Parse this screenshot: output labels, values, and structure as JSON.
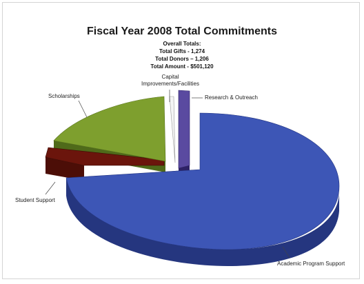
{
  "chart_data": {
    "type": "pie",
    "title": "Fiscal Year 2008 Total Commitments",
    "subtitle_lines": [
      "Overall Totals:",
      "Total Gifts - 1,274",
      "Total Donors – 1,206",
      "Total Amount - $501,120"
    ],
    "categories": [
      "Academic Program Support",
      "Student Support",
      "Scholarships",
      "Capital Improvements/Facilities",
      "Research & Outreach"
    ],
    "values": [
      70,
      5,
      20,
      1,
      4
    ],
    "value_unit": "percent (estimated)",
    "colors": [
      "#3d56b6",
      "#6b150c",
      "#7e9f2e",
      "#f2f2f2",
      "#5a4aa0"
    ],
    "style": "3d-exploded",
    "legend": "none (leader-line labels)"
  }
}
